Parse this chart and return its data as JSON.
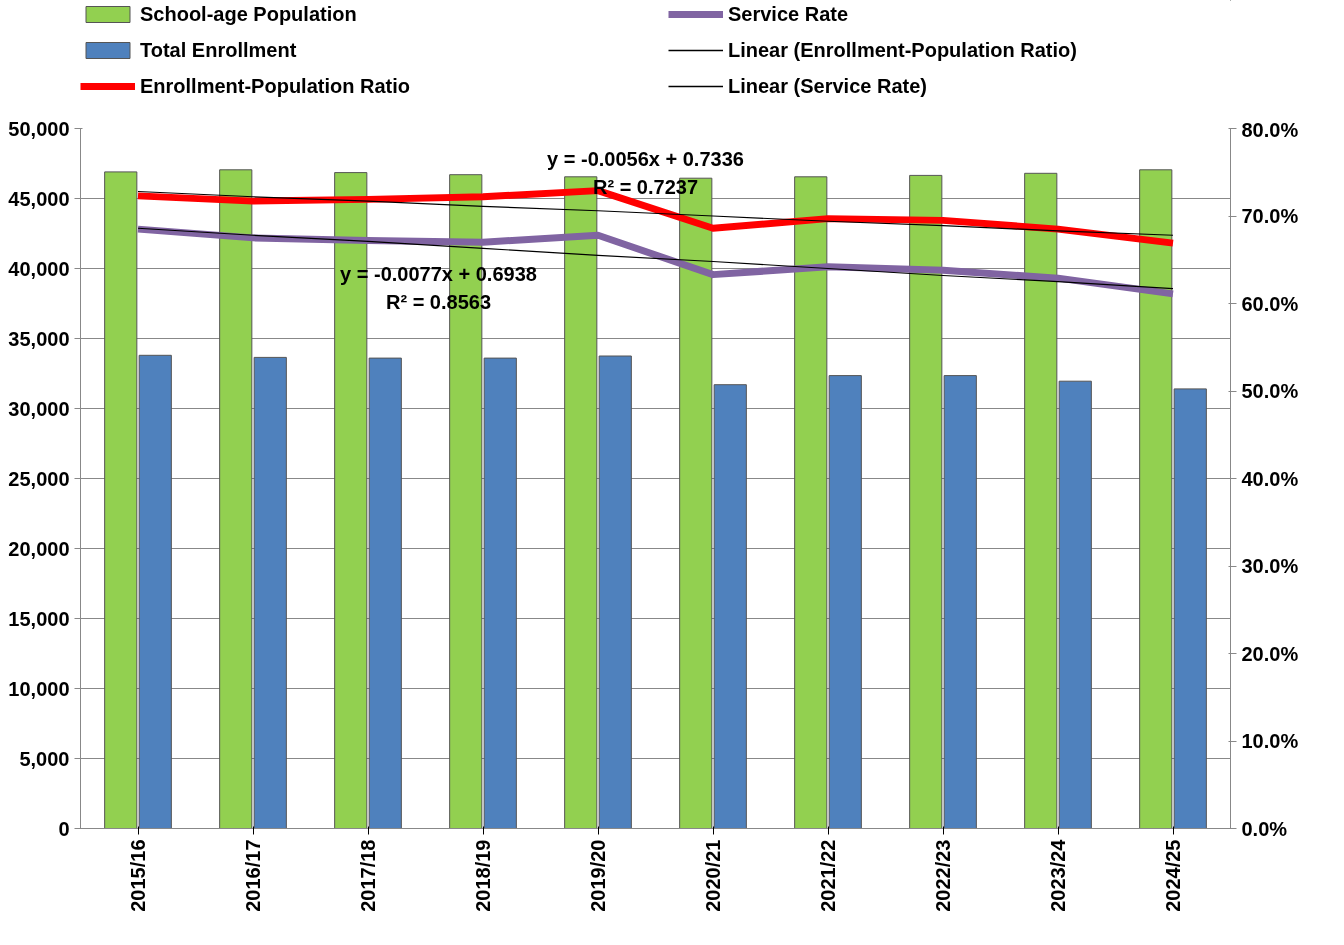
{
  "chart_data": {
    "type": "bar",
    "categories": [
      "2015/16",
      "2016/17",
      "2017/18",
      "2018/19",
      "2019/20",
      "2020/21",
      "2021/22",
      "2022/23",
      "2023/24",
      "2024/25"
    ],
    "series": [
      {
        "name": "School-age Population",
        "color": "#92d050",
        "values": [
          46900,
          47050,
          46850,
          46700,
          46550,
          46450,
          46550,
          46650,
          46800,
          47050
        ]
      },
      {
        "name": "Total Enrollment",
        "color": "#4f81bd",
        "values": [
          33800,
          33650,
          33600,
          33600,
          33750,
          31700,
          32350,
          32350,
          31950,
          31400
        ]
      },
      {
        "name": "Enrollment-Population Ratio",
        "type": "line",
        "axis": "y2",
        "color": "#ff0000",
        "values": [
          72.3,
          71.7,
          71.9,
          72.2,
          72.9,
          68.6,
          69.7,
          69.5,
          68.5,
          66.9
        ]
      },
      {
        "name": "Service Rate",
        "type": "line",
        "axis": "y2",
        "color": "#8064a2",
        "values": [
          68.5,
          67.5,
          67.2,
          67.0,
          67.8,
          63.3,
          64.2,
          63.8,
          62.9,
          61.1
        ]
      },
      {
        "name": "Linear (Enrollment-Population Ratio)",
        "type": "line",
        "axis": "y2",
        "color": "#000000",
        "values": [
          72.8,
          72.2,
          71.7,
          71.1,
          70.6,
          70.0,
          69.4,
          68.9,
          68.3,
          67.8
        ]
      },
      {
        "name": "Linear (Service Rate)",
        "type": "line",
        "axis": "y2",
        "color": "#000000",
        "values": [
          68.6,
          67.8,
          67.1,
          66.3,
          65.5,
          64.8,
          64.0,
          63.2,
          62.5,
          61.7
        ]
      }
    ],
    "ylim": [
      0,
      50000
    ],
    "yticks": [
      {
        "value": 0,
        "label": "0"
      },
      {
        "value": 5000,
        "label": "5,000"
      },
      {
        "value": 10000,
        "label": "10,000"
      },
      {
        "value": 15000,
        "label": "15,000"
      },
      {
        "value": 20000,
        "label": "20,000"
      },
      {
        "value": 25000,
        "label": "25,000"
      },
      {
        "value": 30000,
        "label": "30,000"
      },
      {
        "value": 35000,
        "label": "35,000"
      },
      {
        "value": 40000,
        "label": "40,000"
      },
      {
        "value": 45000,
        "label": "45,000"
      },
      {
        "value": 50000,
        "label": "50,000"
      }
    ],
    "y2lim": [
      0,
      80
    ],
    "y2ticks": [
      {
        "value": 0,
        "label": "0.0%"
      },
      {
        "value": 10,
        "label": "10.0%"
      },
      {
        "value": 20,
        "label": "20.0%"
      },
      {
        "value": 30,
        "label": "30.0%"
      },
      {
        "value": 40,
        "label": "40.0%"
      },
      {
        "value": 50,
        "label": "50.0%"
      },
      {
        "value": 60,
        "label": "60.0%"
      },
      {
        "value": 70,
        "label": "70.0%"
      },
      {
        "value": 80,
        "label": "80.0%"
      }
    ],
    "annotations": [
      "y = -0.0056x + 0.7336",
      "R² = 0.7237",
      "y = -0.0077x + 0.6938",
      "R² = 0.8563"
    ],
    "grid": "y",
    "legend": "top",
    "marker": "none"
  }
}
